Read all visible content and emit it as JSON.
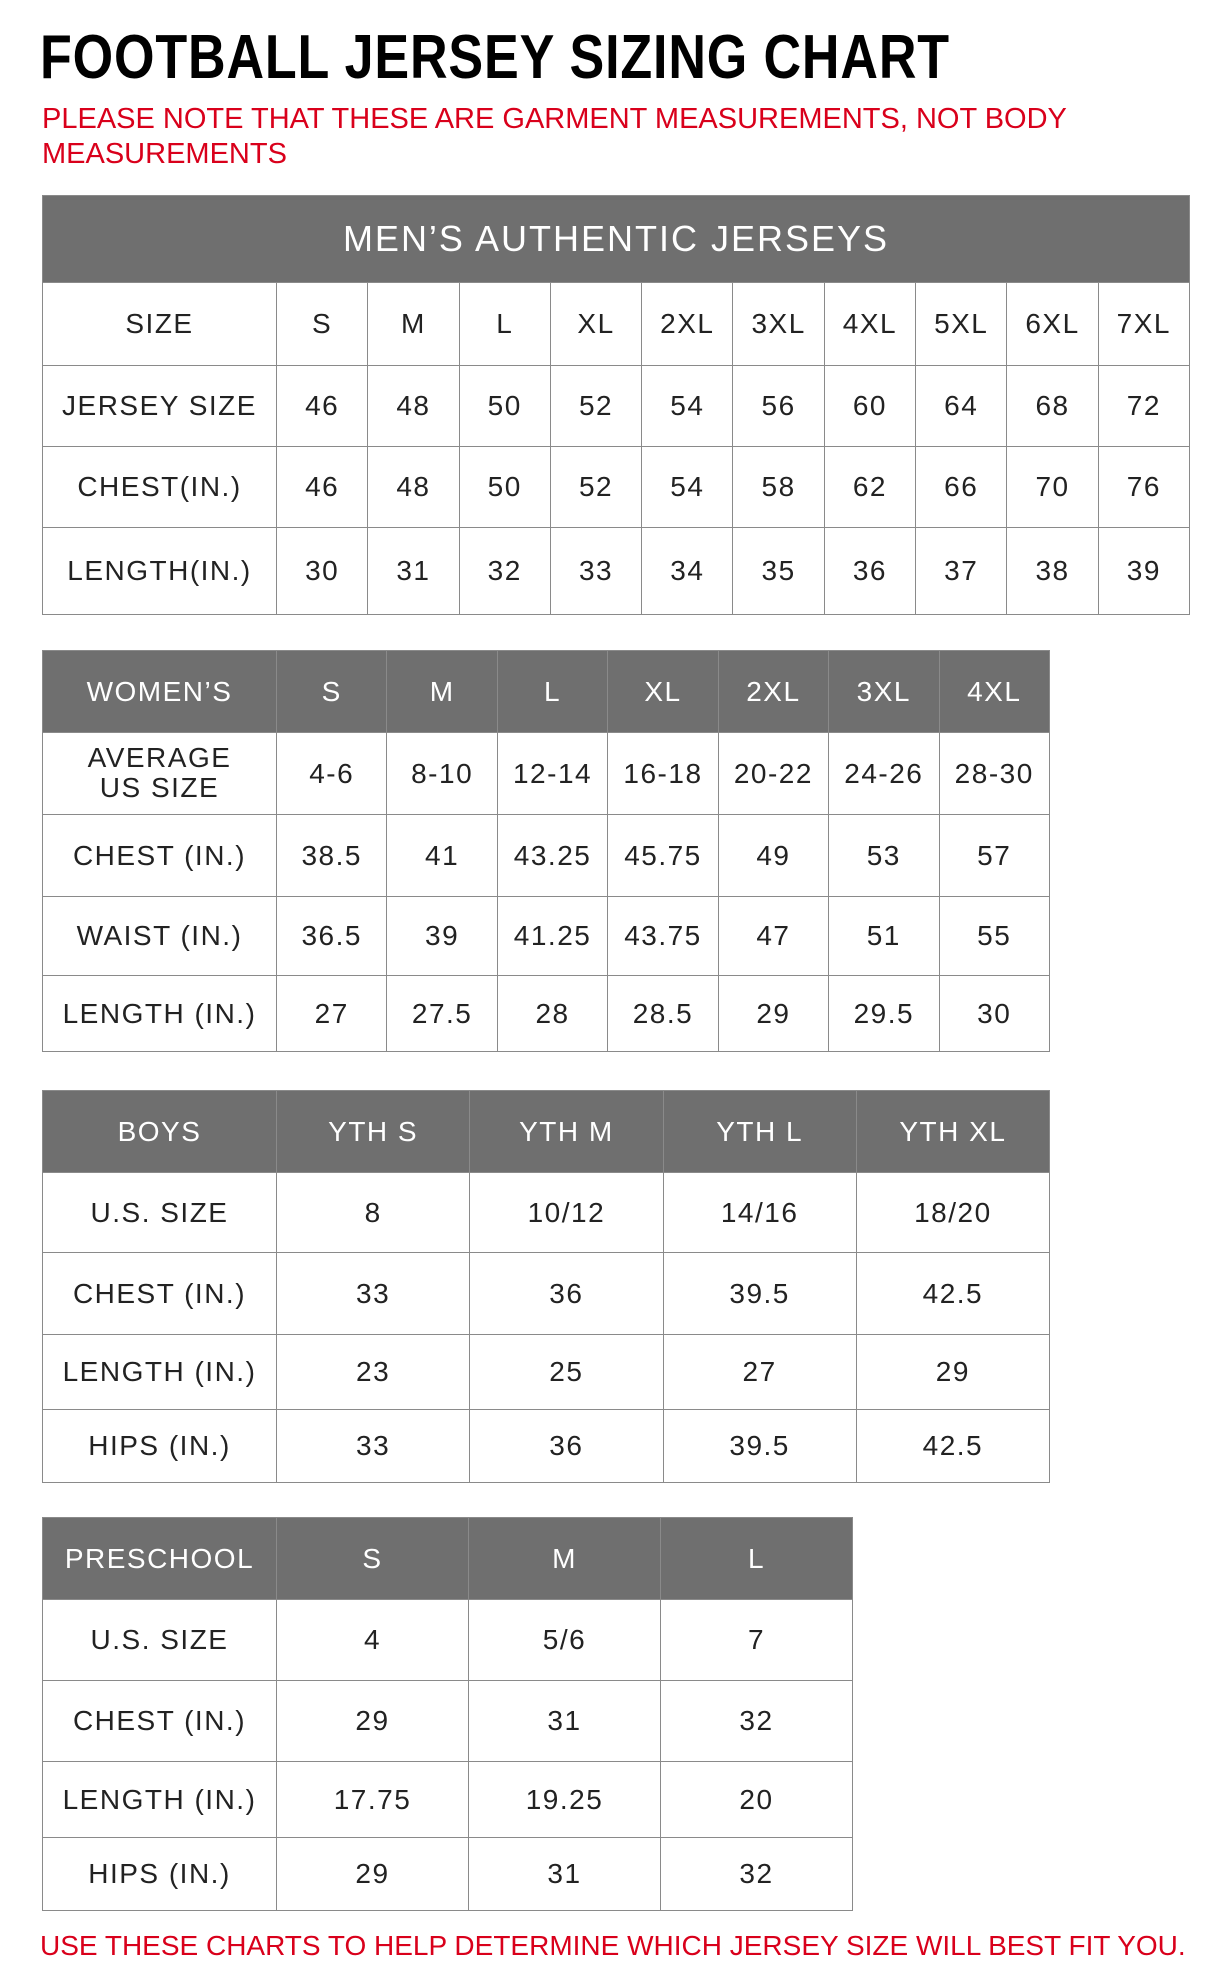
{
  "title": "FOOTBALL JERSEY SIZING CHART",
  "note": "PLEASE NOTE THAT THESE ARE GARMENT MEASUREMENTS, NOT BODY MEASUREMENTS",
  "tables": [
    {
      "title": "MEN’S AUTHENTIC JERSEYS",
      "header": [
        "SIZE",
        "S",
        "M",
        "L",
        "XL",
        "2XL",
        "3XL",
        "4XL",
        "5XL",
        "6XL",
        "7XL"
      ],
      "rows": [
        [
          "JERSEY SIZE",
          "46",
          "48",
          "50",
          "52",
          "54",
          "56",
          "60",
          "64",
          "68",
          "72"
        ],
        [
          "CHEST(IN.)",
          "46",
          "48",
          "50",
          "52",
          "54",
          "58",
          "62",
          "66",
          "70",
          "76"
        ],
        [
          "LENGTH(IN.)",
          "30",
          "31",
          "32",
          "33",
          "34",
          "35",
          "36",
          "37",
          "38",
          "39"
        ]
      ]
    },
    {
      "header": [
        "WOMEN’S",
        "S",
        "M",
        "L",
        "XL",
        "2XL",
        "3XL",
        "4XL"
      ],
      "rows": [
        [
          "AVERAGE US SIZE",
          "4-6",
          "8-10",
          "12-14",
          "16-18",
          "20-22",
          "24-26",
          "28-30"
        ],
        [
          "CHEST (IN.)",
          "38.5",
          "41",
          "43.25",
          "45.75",
          "49",
          "53",
          "57"
        ],
        [
          "WAIST (IN.)",
          "36.5",
          "39",
          "41.25",
          "43.75",
          "47",
          "51",
          "55"
        ],
        [
          "LENGTH (IN.)",
          "27",
          "27.5",
          "28",
          "28.5",
          "29",
          "29.5",
          "30"
        ]
      ]
    },
    {
      "header": [
        "BOYS",
        "YTH S",
        "YTH M",
        "YTH L",
        "YTH XL"
      ],
      "rows": [
        [
          "U.S. SIZE",
          "8",
          "10/12",
          "14/16",
          "18/20"
        ],
        [
          "CHEST (IN.)",
          "33",
          "36",
          "39.5",
          "42.5"
        ],
        [
          "LENGTH (IN.)",
          "23",
          "25",
          "27",
          "29"
        ],
        [
          "HIPS (IN.)",
          "33",
          "36",
          "39.5",
          "42.5"
        ]
      ]
    },
    {
      "header": [
        "PRESCHOOL",
        "S",
        "M",
        "L"
      ],
      "rows": [
        [
          "U.S. SIZE",
          "4",
          "5/6",
          "7"
        ],
        [
          "CHEST (IN.)",
          "29",
          "31",
          "32"
        ],
        [
          "LENGTH (IN.)",
          "17.75",
          "19.25",
          "20"
        ],
        [
          "HIPS (IN.)",
          "29",
          "31",
          "32"
        ]
      ]
    }
  ],
  "footer": "USE THESE CHARTS TO HELP DETERMINE WHICH JERSEY SIZE WILL BEST FIT YOU."
}
